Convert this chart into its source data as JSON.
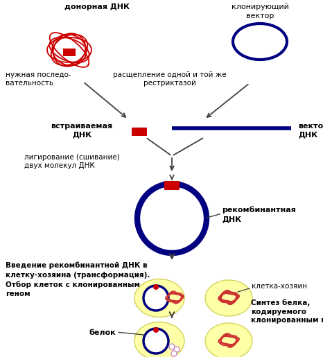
{
  "bg_color": "#ffffff",
  "labels": {
    "donor_dna": "донорная ДНК",
    "cloning_vector": "клонирующий\nвектор",
    "needed_seq": "нужная последо-\nвательность",
    "restriction": "расщепление одной и той же\nрестриктазой",
    "insert_dna": "встраиваемая\nДНК",
    "vector_dna": "векторная\nДНК",
    "ligation": "лигирование (сшивание)\nдвух молекул ДНК",
    "recombinant": "рекомбинантная\nДНК",
    "introduction": "Введение рекомбинантной ДНК в\nклетку-хозяина (трансформация).\nОтбор клеток с клонированным\nгеном",
    "host_cell": "клетка-хозяин",
    "protein_synthesis": "Синтез белка,\nкодируемого\nклонированным геном",
    "protein": "белок"
  },
  "colors": {
    "red": "#cc0000",
    "dark_blue": "#000080",
    "arrow": "#404040",
    "text": "#000000",
    "yellow_fill": "#ffff99",
    "bacteria": "#cc3333",
    "protein_blob": "#cc88cc"
  },
  "figsize": [
    4.66,
    5.15
  ],
  "dpi": 100
}
